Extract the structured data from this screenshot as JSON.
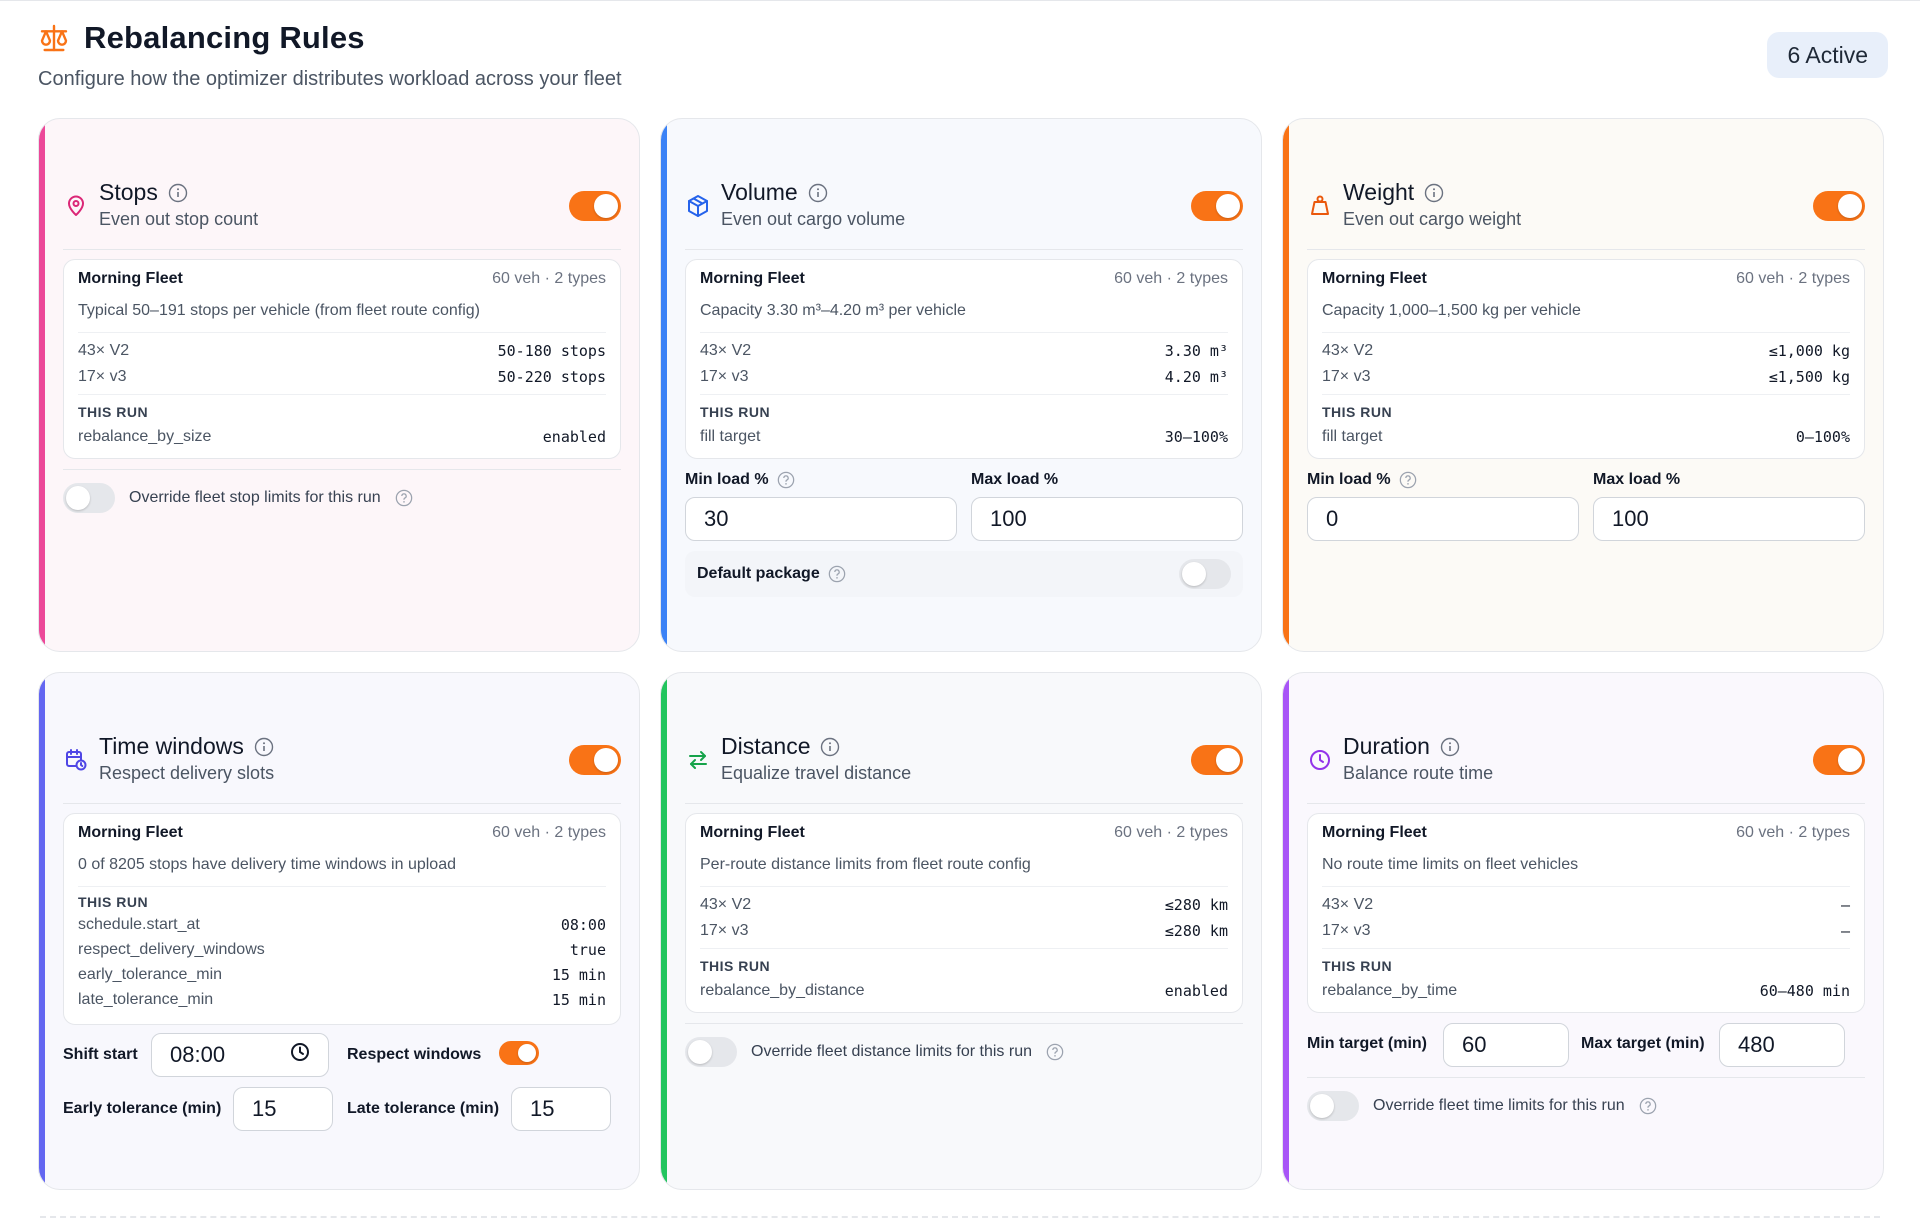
{
  "header": {
    "title": "Rebalancing Rules",
    "subtitle": "Configure how the optimizer distributes workload across your fleet",
    "active_badge": "6 Active"
  },
  "colors": {
    "toggle_on": "#f97316",
    "stops_accent": "#ec4899",
    "volume_accent": "#3b82f6",
    "weight_accent": "#f97316",
    "time_accent": "#6366f1",
    "distance_accent": "#22c55e",
    "duration_accent": "#a855f7"
  },
  "cards": {
    "stops": {
      "title": "Stops",
      "subtitle": "Even out stop count",
      "icon": "map-pin-icon",
      "enabled": true,
      "fleet": "Morning Fleet",
      "meta": "60 veh · 2 types",
      "desc": "Typical 50–191 stops per vehicle (from fleet route config)",
      "rows": [
        {
          "label": "43× V2",
          "value": "50-180 stops"
        },
        {
          "label": "17× v3",
          "value": "50-220 stops"
        }
      ],
      "this_run": "THIS RUN",
      "run_rows": [
        {
          "label": "rebalance_by_size",
          "value": "enabled"
        }
      ],
      "override_label": "Override fleet stop limits for this run"
    },
    "volume": {
      "title": "Volume",
      "subtitle": "Even out cargo volume",
      "icon": "box-icon",
      "enabled": true,
      "fleet": "Morning Fleet",
      "meta": "60 veh · 2 types",
      "desc": "Capacity 3.30 m³–4.20 m³ per vehicle",
      "rows": [
        {
          "label": "43× V2",
          "value": "3.30 m³"
        },
        {
          "label": "17× v3",
          "value": "4.20 m³"
        }
      ],
      "this_run": "THIS RUN",
      "run_rows": [
        {
          "label": "fill target",
          "value": "30–100%"
        }
      ],
      "min_label": "Min load %",
      "max_label": "Max load %",
      "min_value": "30",
      "max_value": "100",
      "default_package": "Default package"
    },
    "weight": {
      "title": "Weight",
      "subtitle": "Even out cargo weight",
      "icon": "weight-icon",
      "enabled": true,
      "fleet": "Morning Fleet",
      "meta": "60 veh · 2 types",
      "desc": "Capacity 1,000–1,500 kg per vehicle",
      "rows": [
        {
          "label": "43× V2",
          "value": "≤1,000 kg"
        },
        {
          "label": "17× v3",
          "value": "≤1,500 kg"
        }
      ],
      "this_run": "THIS RUN",
      "run_rows": [
        {
          "label": "fill target",
          "value": "0–100%"
        }
      ],
      "min_label": "Min load %",
      "max_label": "Max load %",
      "min_value": "0",
      "max_value": "100"
    },
    "time": {
      "title": "Time windows",
      "subtitle": "Respect delivery slots",
      "icon": "calendar-clock-icon",
      "enabled": true,
      "fleet": "Morning Fleet",
      "meta": "60 veh · 2 types",
      "desc": "0 of 8205 stops have delivery time windows in upload",
      "this_run": "THIS RUN",
      "run_rows": [
        {
          "label": "schedule.start_at",
          "value": "08:00"
        },
        {
          "label": "respect_delivery_windows",
          "value": "true"
        },
        {
          "label": "early_tolerance_min",
          "value": "15 min"
        },
        {
          "label": "late_tolerance_min",
          "value": "15 min"
        }
      ],
      "shift_start_label": "Shift start",
      "shift_start_value": "08:00",
      "respect_windows_label": "Respect windows",
      "early_label": "Early tolerance (min)",
      "early_value": "15",
      "late_label": "Late tolerance (min)",
      "late_value": "15"
    },
    "distance": {
      "title": "Distance",
      "subtitle": "Equalize travel distance",
      "icon": "arrows-swap-icon",
      "enabled": true,
      "fleet": "Morning Fleet",
      "meta": "60 veh · 2 types",
      "desc": "Per-route distance limits from fleet route config",
      "rows": [
        {
          "label": "43× V2",
          "value": "≤280 km"
        },
        {
          "label": "17× v3",
          "value": "≤280 km"
        }
      ],
      "this_run": "THIS RUN",
      "run_rows": [
        {
          "label": "rebalance_by_distance",
          "value": "enabled"
        }
      ],
      "override_label": "Override fleet distance limits for this run"
    },
    "duration": {
      "title": "Duration",
      "subtitle": "Balance route time",
      "icon": "clock-icon",
      "enabled": true,
      "fleet": "Morning Fleet",
      "meta": "60 veh · 2 types",
      "desc": "No route time limits on fleet vehicles",
      "rows": [
        {
          "label": "43× V2",
          "value": "—"
        },
        {
          "label": "17× v3",
          "value": "—"
        }
      ],
      "this_run": "THIS RUN",
      "run_rows": [
        {
          "label": "rebalance_by_time",
          "value": "60–480 min"
        }
      ],
      "min_label": "Min target (min)",
      "min_value": "60",
      "max_label": "Max target (min)",
      "max_value": "480",
      "override_label": "Override fleet time limits for this run"
    }
  }
}
